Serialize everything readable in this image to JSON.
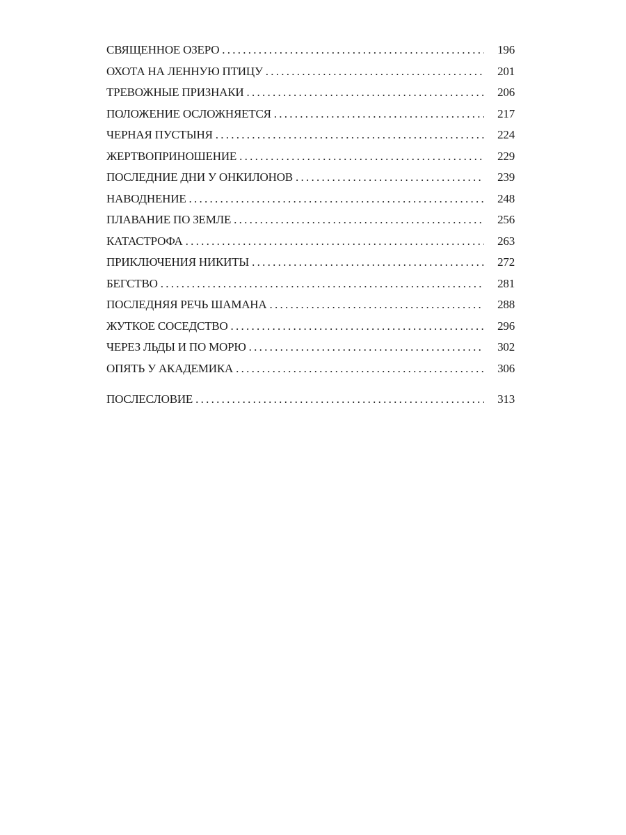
{
  "toc": {
    "entries": [
      {
        "title": "СВЯЩЕННОЕ ОЗЕРО",
        "page": "196"
      },
      {
        "title": "ОХОТА НА ЛЕННУЮ ПТИЦУ",
        "page": "201"
      },
      {
        "title": "ТРЕВОЖНЫЕ ПРИЗНАКИ",
        "page": "206"
      },
      {
        "title": "ПОЛОЖЕНИЕ ОСЛОЖНЯЕТСЯ",
        "page": "217"
      },
      {
        "title": "ЧЕРНАЯ ПУСТЫНЯ",
        "page": "224"
      },
      {
        "title": "ЖЕРТВОПРИНОШЕНИЕ",
        "page": "229"
      },
      {
        "title": "ПОСЛЕДНИЕ ДНИ У ОНКИЛОНОВ",
        "page": "239"
      },
      {
        "title": "НАВОДНЕНИЕ",
        "page": "248"
      },
      {
        "title": "ПЛАВАНИЕ ПО ЗЕМЛЕ",
        "page": "256"
      },
      {
        "title": "КАТАСТРОФА",
        "page": "263"
      },
      {
        "title": "ПРИКЛЮЧЕНИЯ НИКИТЫ",
        "page": "272"
      },
      {
        "title": "БЕГСТВО",
        "page": "281"
      },
      {
        "title": "ПОСЛЕДНЯЯ РЕЧЬ ШАМАНА",
        "page": "288"
      },
      {
        "title": "ЖУТКОЕ СОСЕДСТВО",
        "page": "296"
      },
      {
        "title": "ЧЕРЕЗ ЛЬДЫ И ПО МОРЮ",
        "page": "302"
      },
      {
        "title": "ОПЯТЬ У АКАДЕМИКА",
        "page": "306"
      }
    ],
    "afterword": {
      "title": "ПОСЛЕСЛОВИЕ",
      "page": "313"
    }
  }
}
